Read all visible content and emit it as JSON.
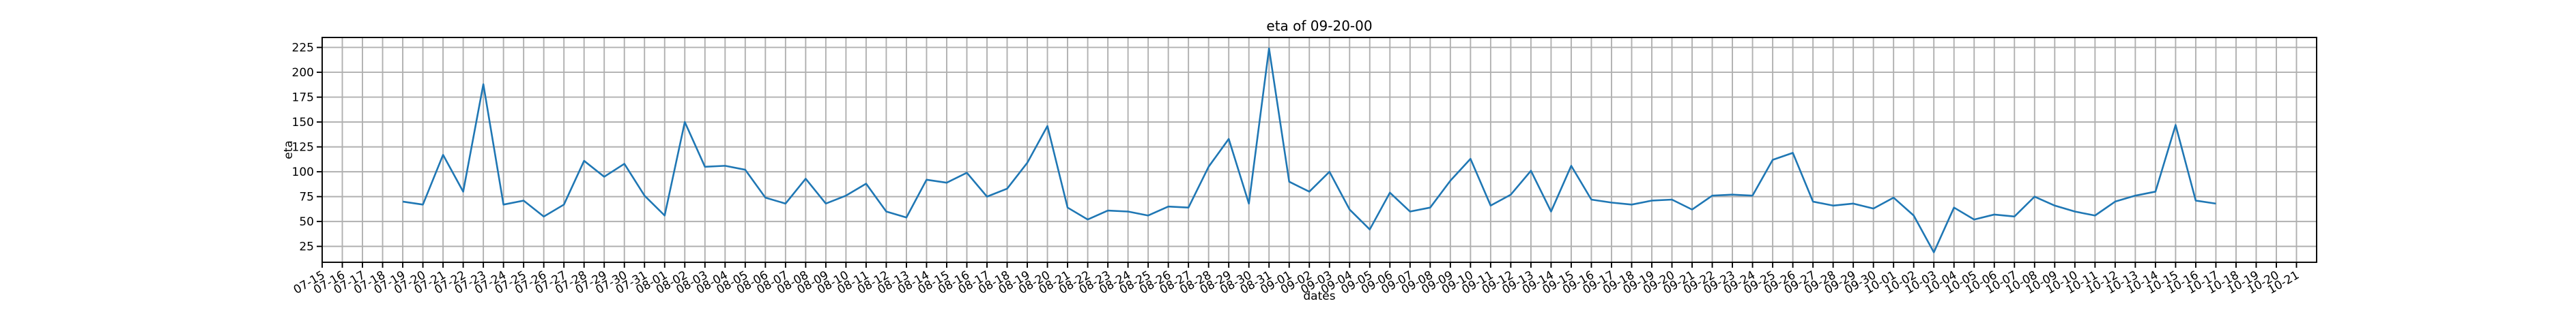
{
  "chart_data": {
    "type": "line",
    "title": "eta of 09-20-00",
    "xlabel": "dates",
    "ylabel": "eta",
    "x": [
      "07-19",
      "07-20",
      "07-21",
      "07-22",
      "07-23",
      "07-24",
      "07-25",
      "07-26",
      "07-27",
      "07-28",
      "07-29",
      "07-30",
      "07-31",
      "08-01",
      "08-02",
      "08-03",
      "08-04",
      "08-05",
      "08-06",
      "08-07",
      "08-08",
      "08-09",
      "08-10",
      "08-11",
      "08-12",
      "08-13",
      "08-14",
      "08-15",
      "08-16",
      "08-17",
      "08-18",
      "08-19",
      "08-20",
      "08-21",
      "08-22",
      "08-23",
      "08-24",
      "08-25",
      "08-26",
      "08-27",
      "08-28",
      "08-29",
      "08-30",
      "08-31",
      "09-01",
      "09-02",
      "09-03",
      "09-04",
      "09-05",
      "09-06",
      "09-07",
      "09-08",
      "09-09",
      "09-10",
      "09-11",
      "09-12",
      "09-13",
      "09-14",
      "09-15",
      "09-16",
      "09-17",
      "09-18",
      "09-19",
      "09-20",
      "09-21",
      "09-22",
      "09-23",
      "09-24",
      "09-25",
      "09-26",
      "09-27",
      "09-28",
      "09-29",
      "09-30",
      "10-01",
      "10-02",
      "10-03",
      "10-04",
      "10-05",
      "10-06",
      "10-07",
      "10-08",
      "10-09",
      "10-10",
      "10-11",
      "10-12",
      "10-13",
      "10-14",
      "10-15",
      "10-16",
      "10-17"
    ],
    "series": [
      {
        "name": "eta",
        "color": "#1f77b4",
        "values": [
          70,
          67,
          117,
          80,
          188,
          67,
          71,
          55,
          67,
          111,
          95,
          108,
          76,
          56,
          150,
          105,
          106,
          102,
          74,
          68,
          93,
          68,
          76,
          88,
          60,
          54,
          92,
          89,
          99,
          75,
          83,
          109,
          146,
          64,
          52,
          61,
          60,
          56,
          65,
          64,
          105,
          133,
          68,
          224,
          90,
          80,
          100,
          62,
          42,
          79,
          60,
          64,
          91,
          113,
          66,
          77,
          101,
          60,
          106,
          72,
          69,
          67,
          71,
          72,
          62,
          76,
          77,
          76,
          112,
          119,
          70,
          66,
          68,
          63,
          74,
          56,
          19,
          64,
          52,
          57,
          55,
          75,
          66,
          60,
          56,
          70,
          76,
          80,
          147,
          71,
          68
        ]
      }
    ],
    "xlim": [
      "07-15",
      "10-22"
    ],
    "xticks": [
      "07-15",
      "07-16",
      "07-17",
      "07-18",
      "07-19",
      "07-20",
      "07-21",
      "07-22",
      "07-23",
      "07-24",
      "07-25",
      "07-26",
      "07-27",
      "07-28",
      "07-29",
      "07-30",
      "07-31",
      "08-01",
      "08-02",
      "08-03",
      "08-04",
      "08-05",
      "08-06",
      "08-07",
      "08-08",
      "08-09",
      "08-10",
      "08-11",
      "08-12",
      "08-13",
      "08-14",
      "08-15",
      "08-16",
      "08-17",
      "08-18",
      "08-19",
      "08-20",
      "08-21",
      "08-22",
      "08-23",
      "08-24",
      "08-25",
      "08-26",
      "08-27",
      "08-28",
      "08-29",
      "08-30",
      "08-31",
      "09-01",
      "09-02",
      "09-03",
      "09-04",
      "09-05",
      "09-06",
      "09-07",
      "09-08",
      "09-09",
      "09-10",
      "09-11",
      "09-12",
      "09-13",
      "09-14",
      "09-15",
      "09-16",
      "09-17",
      "09-18",
      "09-19",
      "09-20",
      "09-21",
      "09-22",
      "09-23",
      "09-24",
      "09-25",
      "09-26",
      "09-27",
      "09-28",
      "09-29",
      "09-30",
      "10-01",
      "10-02",
      "10-03",
      "10-04",
      "10-05",
      "10-06",
      "10-07",
      "10-08",
      "10-09",
      "10-10",
      "10-11",
      "10-12",
      "10-13",
      "10-14",
      "10-15",
      "10-16",
      "10-17",
      "10-18",
      "10-19",
      "10-20",
      "10-21"
    ],
    "ylim": [
      9,
      235
    ],
    "yticks": [
      25,
      50,
      75,
      100,
      125,
      150,
      175,
      200,
      225
    ],
    "grid": true
  }
}
